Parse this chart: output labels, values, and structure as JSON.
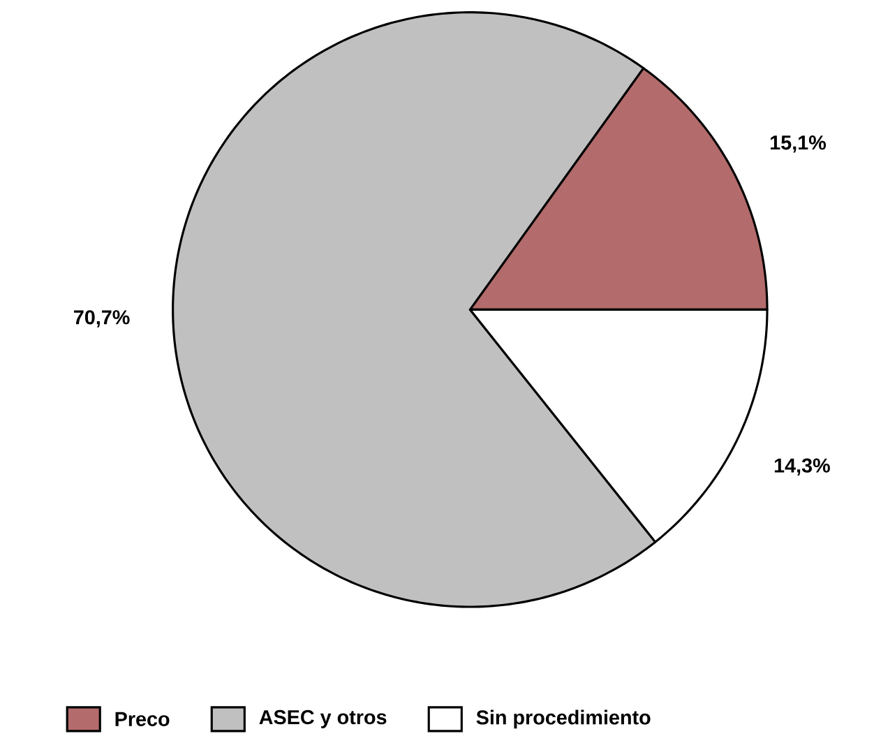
{
  "chart_data": {
    "type": "pie",
    "categories": [
      "Preco",
      "ASEC y otros",
      "Sin procedimiento"
    ],
    "values": [
      15.1,
      70.7,
      14.3
    ],
    "value_labels": [
      "15,1%",
      "70,7%",
      "14,3%"
    ],
    "colors": [
      "#b36b6b",
      "#c0c0c0",
      "#ffffff"
    ],
    "legend": "bottom"
  }
}
